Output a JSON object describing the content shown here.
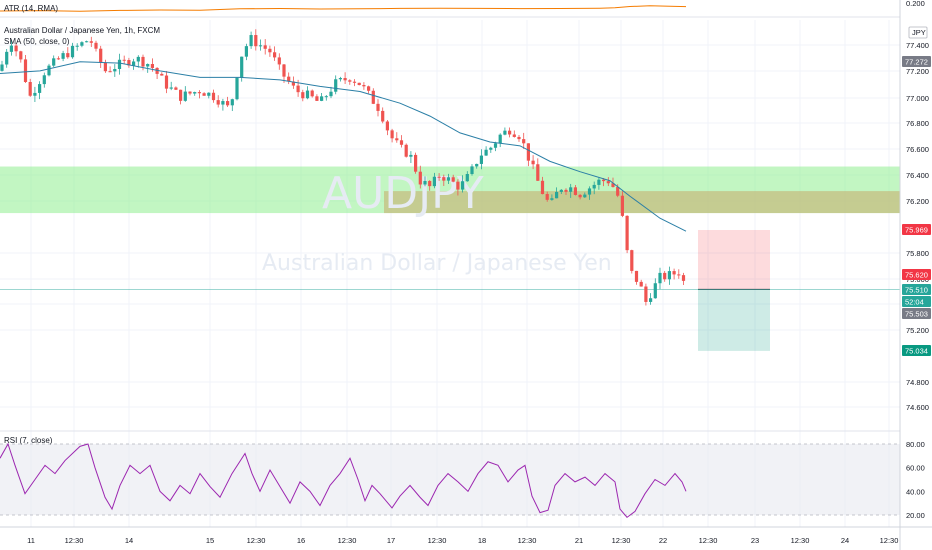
{
  "legend": {
    "atr": "ATR (14, RMA)",
    "symbol": "Australian Dollar / Japanese Yen, 1h, FXCM",
    "sma": "SMA (50, close, 0)",
    "rsi": "RSI (7, close)"
  },
  "watermark": {
    "ticker": "AUDJPY",
    "name": "Australian Dollar / Japanese Yen"
  },
  "currency": "JPY",
  "colors": {
    "up": "#26a69a",
    "down": "#ef5350",
    "sma": "#2b7fa6",
    "rsi": "#9c27b0",
    "atr": "#f57c00",
    "supply": "#90ee90",
    "zone": "#c8a96a"
  },
  "price_badges": [
    {
      "value": "77.272",
      "color": "#787b86"
    },
    {
      "value": "75.969",
      "color": "#f23645"
    },
    {
      "value": "75.620",
      "color": "#f23645"
    },
    {
      "value": "75.510",
      "color": "#26a69a"
    },
    {
      "value": "52:04",
      "color": "#26a69a"
    },
    {
      "value": "75.503",
      "color": "#787b86"
    },
    {
      "value": "75.034",
      "color": "#089981"
    }
  ],
  "atr_axis_label": "0.200",
  "chart_data": {
    "type": "candlestick",
    "ylim": [
      74.45,
      77.85
    ],
    "y_ticks": [
      "77.400",
      "77.200",
      "77.000",
      "76.800",
      "76.600",
      "76.400",
      "76.200",
      "75.800",
      "75.600",
      "75.400",
      "75.200",
      "74.800",
      "74.600"
    ],
    "x_ticks": [
      "11",
      "12:30",
      "14",
      "15",
      "12:30",
      "16",
      "12:30",
      "17",
      "12:30",
      "18",
      "12:30",
      "21",
      "12:30",
      "22",
      "12:30",
      "23",
      "12:30",
      "24",
      "12:30"
    ],
    "rsi_ylim": [
      0,
      100
    ],
    "rsi_ticks": [
      "80.00",
      "60.00",
      "40.00",
      "20.00"
    ],
    "rsi_band": [
      20,
      80
    ],
    "zones": [
      {
        "name": "green-zone",
        "from": 76.1,
        "to": 76.46
      },
      {
        "name": "tan-zone",
        "from": 76.1,
        "to": 76.27
      }
    ],
    "position": {
      "entry": 75.51,
      "stop": 75.969,
      "target": 75.034
    },
    "last_price": 75.51,
    "close_path": [
      [
        0,
        77.2
      ],
      [
        10,
        77.45
      ],
      [
        20,
        77.3
      ],
      [
        30,
        77.0
      ],
      [
        45,
        77.2
      ],
      [
        60,
        77.3
      ],
      [
        70,
        77.35
      ],
      [
        80,
        77.4
      ],
      [
        90,
        77.45
      ],
      [
        95,
        77.35
      ],
      [
        105,
        77.2
      ],
      [
        120,
        77.25
      ],
      [
        135,
        77.3
      ],
      [
        150,
        77.25
      ],
      [
        165,
        77.1
      ],
      [
        180,
        77.0
      ],
      [
        200,
        77.05
      ],
      [
        215,
        77.0
      ],
      [
        230,
        76.9
      ],
      [
        240,
        77.3
      ],
      [
        250,
        77.45
      ],
      [
        260,
        77.4
      ],
      [
        270,
        77.35
      ],
      [
        280,
        77.2
      ],
      [
        295,
        77.05
      ],
      [
        310,
        77.0
      ],
      [
        320,
        76.95
      ],
      [
        335,
        77.1
      ],
      [
        350,
        77.15
      ],
      [
        360,
        77.1
      ],
      [
        370,
        77.0
      ],
      [
        380,
        76.9
      ],
      [
        390,
        76.7
      ],
      [
        400,
        76.6
      ],
      [
        410,
        76.55
      ],
      [
        420,
        76.35
      ],
      [
        430,
        76.3
      ],
      [
        440,
        76.4
      ],
      [
        450,
        76.35
      ],
      [
        460,
        76.3
      ],
      [
        470,
        76.4
      ],
      [
        480,
        76.55
      ],
      [
        490,
        76.6
      ],
      [
        500,
        76.7
      ],
      [
        510,
        76.75
      ],
      [
        520,
        76.7
      ],
      [
        530,
        76.5
      ],
      [
        540,
        76.3
      ],
      [
        550,
        76.15
      ],
      [
        560,
        76.3
      ],
      [
        570,
        76.3
      ],
      [
        580,
        76.25
      ],
      [
        590,
        76.3
      ],
      [
        600,
        76.35
      ],
      [
        610,
        76.35
      ],
      [
        620,
        76.2
      ],
      [
        625,
        75.9
      ],
      [
        630,
        75.65
      ],
      [
        640,
        75.55
      ],
      [
        645,
        75.4
      ],
      [
        652,
        75.5
      ],
      [
        660,
        75.6
      ],
      [
        670,
        75.62
      ],
      [
        680,
        75.65
      ],
      [
        686,
        75.51
      ]
    ],
    "sma_path": [
      [
        0,
        77.18
      ],
      [
        40,
        77.2
      ],
      [
        80,
        77.27
      ],
      [
        120,
        77.26
      ],
      [
        160,
        77.2
      ],
      [
        200,
        77.15
      ],
      [
        240,
        77.15
      ],
      [
        280,
        77.13
      ],
      [
        320,
        77.08
      ],
      [
        360,
        77.04
      ],
      [
        400,
        76.95
      ],
      [
        430,
        76.85
      ],
      [
        460,
        76.72
      ],
      [
        490,
        76.65
      ],
      [
        520,
        76.62
      ],
      [
        550,
        76.5
      ],
      [
        580,
        76.42
      ],
      [
        610,
        76.35
      ],
      [
        630,
        76.23
      ],
      [
        660,
        76.06
      ],
      [
        686,
        75.96
      ]
    ],
    "rsi_path": [
      [
        0,
        68
      ],
      [
        8,
        80
      ],
      [
        15,
        62
      ],
      [
        25,
        38
      ],
      [
        35,
        50
      ],
      [
        45,
        62
      ],
      [
        55,
        55
      ],
      [
        65,
        66
      ],
      [
        80,
        78
      ],
      [
        88,
        80
      ],
      [
        95,
        60
      ],
      [
        105,
        35
      ],
      [
        112,
        25
      ],
      [
        120,
        45
      ],
      [
        130,
        62
      ],
      [
        140,
        55
      ],
      [
        150,
        62
      ],
      [
        160,
        40
      ],
      [
        170,
        32
      ],
      [
        180,
        45
      ],
      [
        190,
        38
      ],
      [
        200,
        55
      ],
      [
        210,
        44
      ],
      [
        220,
        35
      ],
      [
        232,
        55
      ],
      [
        245,
        72
      ],
      [
        252,
        55
      ],
      [
        260,
        40
      ],
      [
        270,
        58
      ],
      [
        280,
        44
      ],
      [
        290,
        30
      ],
      [
        300,
        48
      ],
      [
        310,
        40
      ],
      [
        320,
        28
      ],
      [
        330,
        45
      ],
      [
        340,
        55
      ],
      [
        350,
        68
      ],
      [
        358,
        50
      ],
      [
        365,
        32
      ],
      [
        372,
        45
      ],
      [
        380,
        38
      ],
      [
        392,
        26
      ],
      [
        400,
        36
      ],
      [
        410,
        45
      ],
      [
        420,
        35
      ],
      [
        428,
        28
      ],
      [
        438,
        45
      ],
      [
        448,
        55
      ],
      [
        458,
        48
      ],
      [
        468,
        40
      ],
      [
        478,
        55
      ],
      [
        488,
        65
      ],
      [
        498,
        62
      ],
      [
        508,
        48
      ],
      [
        518,
        58
      ],
      [
        525,
        62
      ],
      [
        532,
        36
      ],
      [
        540,
        22
      ],
      [
        548,
        24
      ],
      [
        555,
        45
      ],
      [
        565,
        55
      ],
      [
        575,
        48
      ],
      [
        585,
        52
      ],
      [
        595,
        45
      ],
      [
        605,
        55
      ],
      [
        615,
        48
      ],
      [
        620,
        25
      ],
      [
        627,
        18
      ],
      [
        635,
        23
      ],
      [
        645,
        38
      ],
      [
        655,
        50
      ],
      [
        665,
        45
      ],
      [
        675,
        55
      ],
      [
        682,
        48
      ],
      [
        686,
        40
      ]
    ],
    "atr_path": [
      [
        0,
        30
      ],
      [
        40,
        34
      ],
      [
        80,
        28
      ],
      [
        120,
        36
      ],
      [
        160,
        40
      ],
      [
        200,
        38
      ],
      [
        240,
        52
      ],
      [
        280,
        55
      ],
      [
        320,
        50
      ],
      [
        360,
        52
      ],
      [
        400,
        56
      ],
      [
        440,
        58
      ],
      [
        480,
        56
      ],
      [
        520,
        54
      ],
      [
        560,
        55
      ],
      [
        600,
        58
      ],
      [
        615,
        62
      ],
      [
        630,
        75
      ],
      [
        650,
        82
      ],
      [
        670,
        78
      ],
      [
        686,
        74
      ]
    ]
  }
}
